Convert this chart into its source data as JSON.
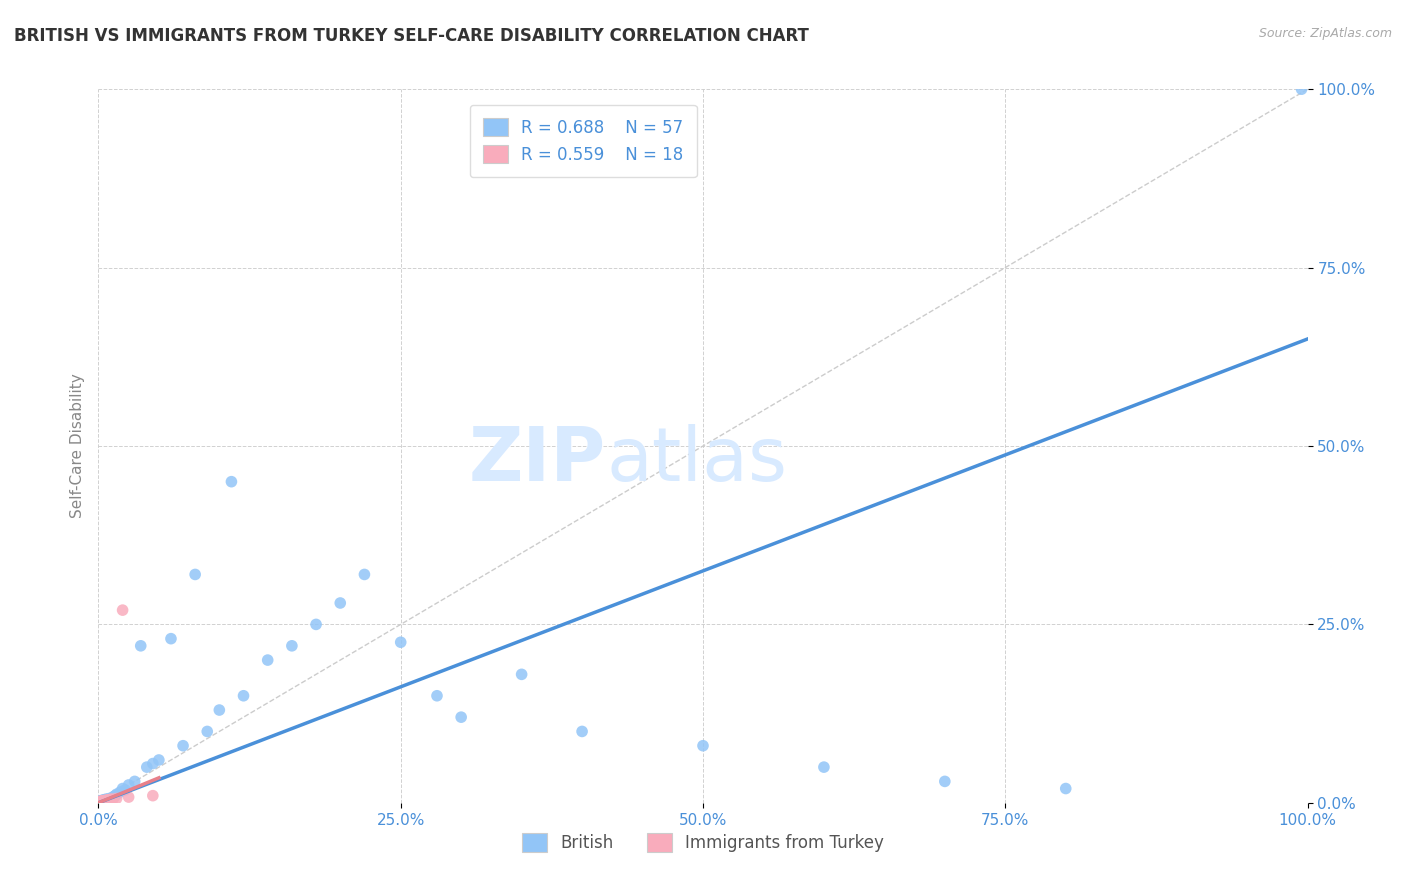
{
  "title": "BRITISH VS IMMIGRANTS FROM TURKEY SELF-CARE DISABILITY CORRELATION CHART",
  "source": "Source: ZipAtlas.com",
  "ylabel": "Self-Care Disability",
  "legend_r1": "R = 0.688",
  "legend_n1": "N = 57",
  "legend_r2": "R = 0.559",
  "legend_n2": "N = 18",
  "legend_label1": "British",
  "legend_label2": "Immigrants from Turkey",
  "xlim": [
    0,
    100
  ],
  "ylim": [
    0,
    100
  ],
  "british_color": "#92C5F7",
  "turkey_color": "#F9ACBC",
  "british_line_color": "#4A90D9",
  "turkey_line_color": "#E8808A",
  "diagonal_color": "#CCCCCC",
  "background_color": "#FFFFFF",
  "grid_color": "#CCCCCC",
  "title_color": "#333333",
  "axis_label_color": "#888888",
  "tick_label_color": "#4A90D9",
  "british_x": [
    0.1,
    0.15,
    0.2,
    0.2,
    0.25,
    0.3,
    0.3,
    0.35,
    0.4,
    0.4,
    0.45,
    0.5,
    0.5,
    0.6,
    0.6,
    0.65,
    0.7,
    0.75,
    0.8,
    0.9,
    1.0,
    1.1,
    1.2,
    1.3,
    1.4,
    1.5,
    1.8,
    2.0,
    2.2,
    2.5,
    3.0,
    3.5,
    4.0,
    4.5,
    5.0,
    6.0,
    7.0,
    8.0,
    9.0,
    10.0,
    11.0,
    12.0,
    14.0,
    16.0,
    18.0,
    20.0,
    22.0,
    25.0,
    28.0,
    30.0,
    35.0,
    40.0,
    50.0,
    60.0,
    70.0,
    80.0,
    99.5
  ],
  "british_y": [
    0.1,
    0.2,
    0.1,
    0.3,
    0.2,
    0.1,
    0.3,
    0.2,
    0.2,
    0.4,
    0.3,
    0.2,
    0.4,
    0.3,
    0.5,
    0.3,
    0.4,
    0.5,
    0.4,
    0.6,
    0.5,
    0.6,
    0.8,
    0.9,
    1.0,
    1.2,
    1.5,
    2.0,
    1.8,
    2.5,
    3.0,
    22.0,
    5.0,
    5.5,
    6.0,
    23.0,
    8.0,
    32.0,
    10.0,
    13.0,
    45.0,
    15.0,
    20.0,
    22.0,
    25.0,
    28.0,
    32.0,
    22.5,
    15.0,
    12.0,
    18.0,
    10.0,
    8.0,
    5.0,
    3.0,
    2.0,
    100.0
  ],
  "turkey_x": [
    0.1,
    0.15,
    0.2,
    0.25,
    0.3,
    0.35,
    0.4,
    0.45,
    0.5,
    0.6,
    0.7,
    0.8,
    1.0,
    1.2,
    1.5,
    2.0,
    2.5,
    4.5
  ],
  "turkey_y": [
    0.1,
    0.2,
    0.1,
    0.2,
    0.2,
    0.3,
    0.2,
    0.3,
    0.3,
    0.3,
    0.4,
    0.4,
    0.5,
    0.5,
    0.6,
    27.0,
    0.8,
    1.0
  ],
  "british_line_x0": 0,
  "british_line_y0": 0,
  "british_line_x1": 100,
  "british_line_y1": 65,
  "turkey_line_x0": 0,
  "turkey_line_y0": 0,
  "turkey_line_x1": 5,
  "turkey_line_y1": 3.5
}
